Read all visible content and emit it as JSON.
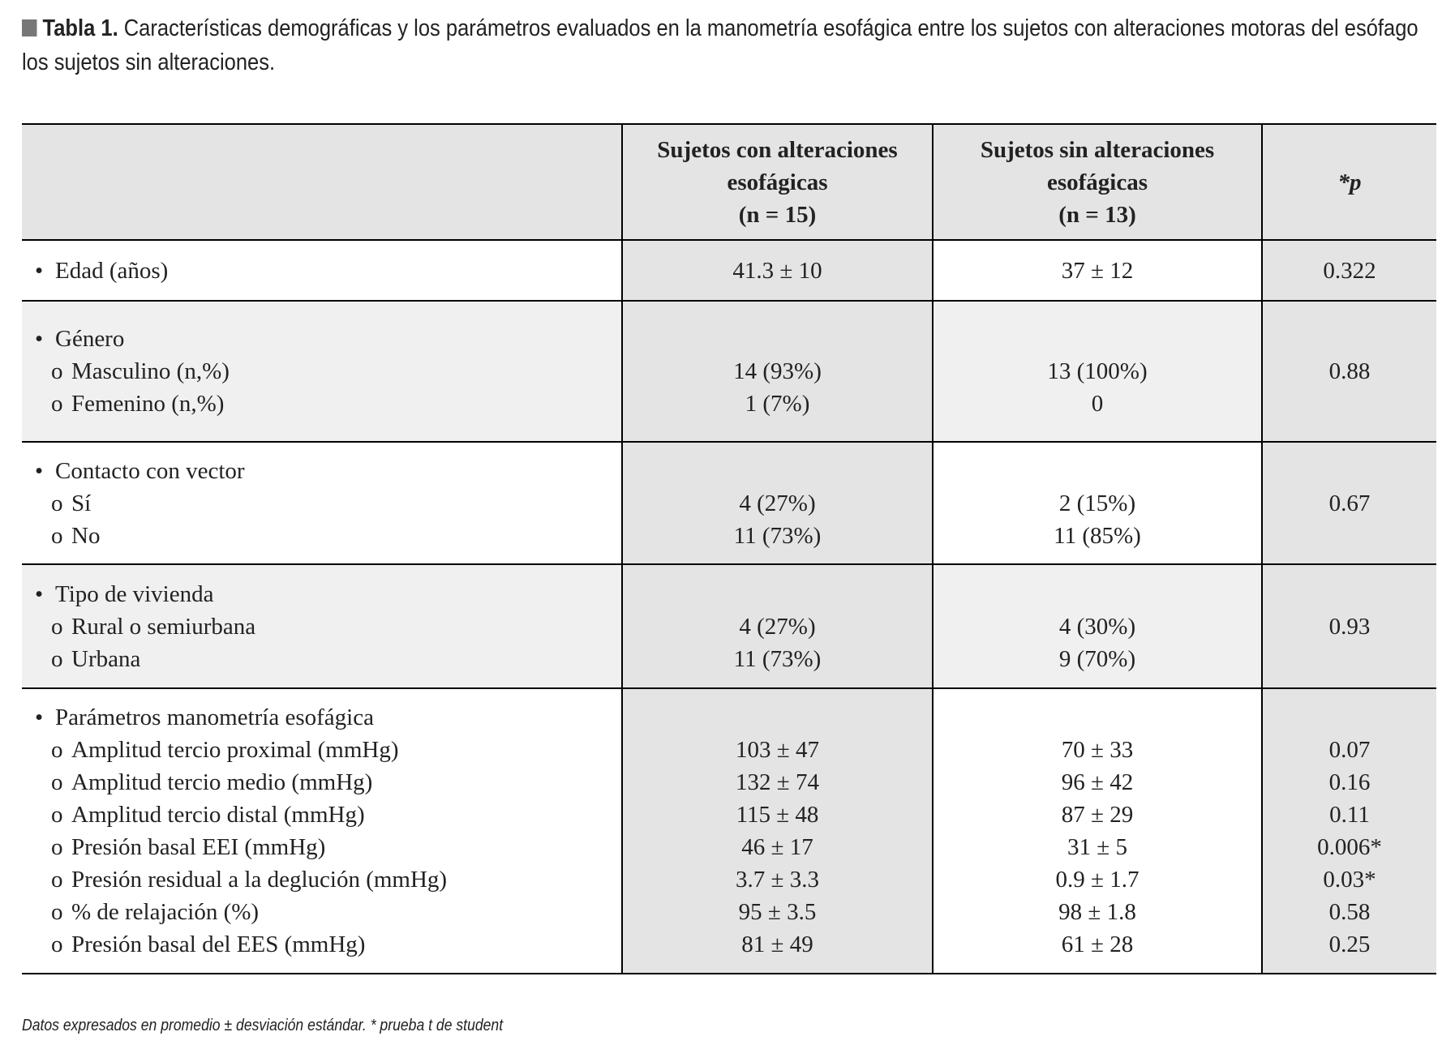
{
  "caption": {
    "label": "Tabla 1.",
    "text": "Características demográficas y los parámetros evaluados en la manometría esofágica entre los sujetos con alteraciones motoras del esófago",
    "text2": "los sujetos sin alteraciones."
  },
  "table": {
    "header": [
      [
        "Sujetos con alteraciones",
        "esofágicas",
        "(n = 15)"
      ],
      [
        "Sujetos sin alteraciones",
        "esofágicas",
        "(n = 13)"
      ],
      "*p"
    ],
    "groups": [
      {
        "label": "Edad (años)",
        "con": "41.3 ± 10",
        "sin": "37 ± 12",
        "p": "0.322"
      },
      {
        "label": "Género",
        "items": [
          {
            "label": "Masculino (n,%)",
            "con": "14 (93%)",
            "sin": "13 (100%)"
          },
          {
            "label": "Femenino (n,%)",
            "con": "1 (7%)",
            "sin": "0"
          }
        ],
        "p": "0.88"
      },
      {
        "label": "Contacto con vector",
        "items": [
          {
            "label": "Sí",
            "con": "4 (27%)",
            "sin": "2 (15%)"
          },
          {
            "label": "No",
            "con": "11 (73%)",
            "sin": "11 (85%)"
          }
        ],
        "p": "0.67"
      },
      {
        "label": "Tipo de vivienda",
        "items": [
          {
            "label": "Rural o semiurbana",
            "con": "4 (27%)",
            "sin": "4 (30%)"
          },
          {
            "label": "Urbana",
            "con": "11 (73%)",
            "sin": "9 (70%)"
          }
        ],
        "p": "0.93"
      },
      {
        "label": "Parámetros manometría esofágica",
        "items": [
          {
            "label": "Amplitud tercio proximal (mmHg)",
            "con": "103 ± 47",
            "sin": "70 ± 33",
            "p": "0.07"
          },
          {
            "label": "Amplitud tercio medio (mmHg)",
            "con": "132 ± 74",
            "sin": "96 ± 42",
            "p": "0.16"
          },
          {
            "label": "Amplitud tercio distal (mmHg)",
            "con": "115 ± 48",
            "sin": "87 ± 29",
            "p": "0.11"
          },
          {
            "label": "Presión basal EEI (mmHg)",
            "con": "46 ± 17",
            "sin": "31 ± 5",
            "p": "0.006*"
          },
          {
            "label": "Presión residual a la deglución (mmHg)",
            "con": "3.7 ± 3.3",
            "sin": "0.9 ± 1.7",
            "p": "0.03*"
          },
          {
            "label": "% de relajación (%)",
            "con": "95 ± 3.5",
            "sin": "98 ± 1.8",
            "p": "0.58"
          },
          {
            "label": "Presión basal del EES (mmHg)",
            "con": "81 ± 49",
            "sin": "61 ± 28",
            "p": "0.25"
          }
        ]
      }
    ]
  },
  "footnote": "Datos expresados en promedio ± desviación estándar. * prueba t de student"
}
